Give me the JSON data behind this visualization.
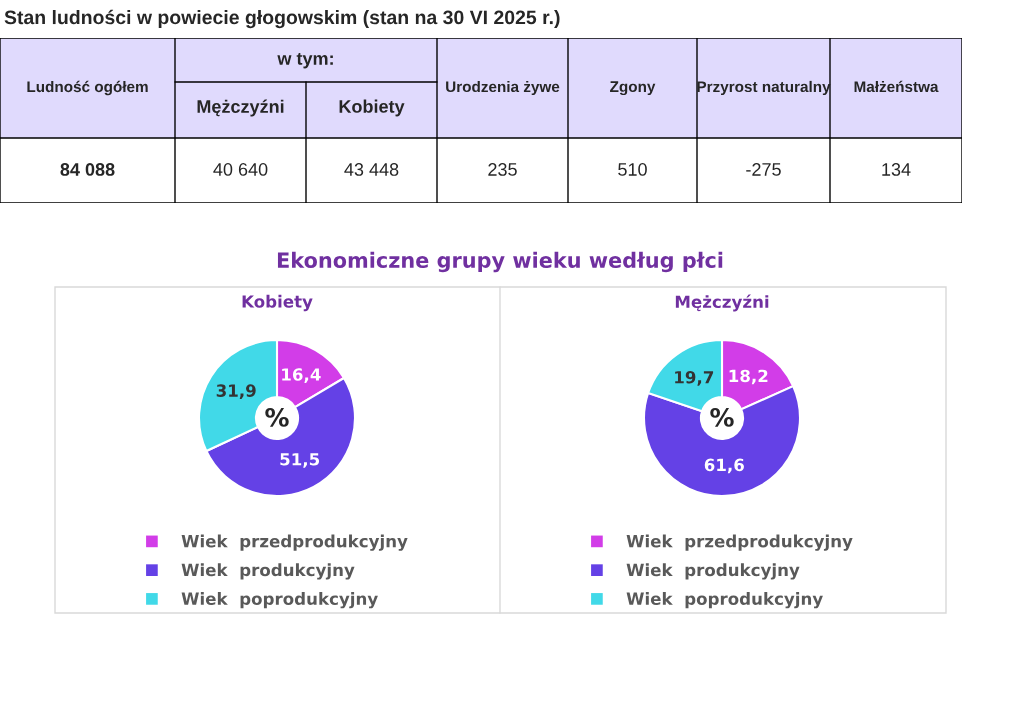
{
  "chart_data": [
    {
      "type": "other",
      "title": "Stan ludności w powiecie głogowskim (stan na 30 VI 2025 r.)",
      "annotations": [
        "w tym:"
      ],
      "categories": [
        "Ludność ogółem",
        "Mężczyźni",
        "Kobiety",
        "Urodzenia żywe",
        "Zgony",
        "Przyrost naturalny",
        "Małżeństwa"
      ],
      "values": [
        84088,
        40640,
        43448,
        235,
        510,
        -275,
        134
      ],
      "value_labels": [
        "84 088",
        "40 640",
        "43 448",
        "235",
        "510",
        "-275",
        "134"
      ]
    },
    {
      "type": "donut",
      "title": "Ekonomiczne grupy wieku według płci",
      "subtitle": "Kobiety",
      "annotations": [
        "%"
      ],
      "categories": [
        "Wiek  przedprodukcyjny",
        "Wiek  produkcyjny",
        "Wiek  poprodukcyjny"
      ],
      "values": [
        16.4,
        51.5,
        31.9
      ],
      "colors": [
        "#d23de8",
        "#6441e6",
        "#41d9e8"
      ],
      "value_labels": [
        "16,4",
        "51,5",
        "31,9"
      ],
      "legend": "bottom"
    },
    {
      "type": "donut",
      "subtitle": "Mężczyźni",
      "annotations": [
        "%"
      ],
      "categories": [
        "Wiek  przedprodukcyjny",
        "Wiek  produkcyjny",
        "Wiek  poprodukcyjny"
      ],
      "values": [
        18.2,
        61.6,
        19.7
      ],
      "colors": [
        "#d23de8",
        "#6441e6",
        "#41d9e8"
      ],
      "value_labels": [
        "18,2",
        "61,6",
        "19,7"
      ],
      "legend": "bottom"
    }
  ]
}
